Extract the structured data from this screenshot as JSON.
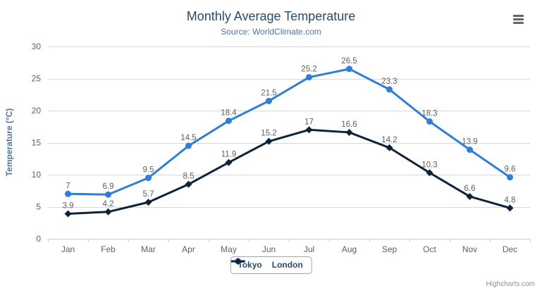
{
  "header": {
    "title": "Monthly Average Temperature",
    "subtitle": "Source: WorldClimate.com",
    "menu_icon": "hamburger-menu"
  },
  "credits": {
    "label": "Highcharts.com"
  },
  "colors": {
    "title": "#274b6d",
    "subtitle": "#4d759e",
    "axis_title": "#4d759e",
    "tick_label": "#606060",
    "data_label": "#606060",
    "gridline": "#d8d8d8",
    "axis_line": "#c0d0e0",
    "legend_text": "#274b6d",
    "credits_text": "#909090",
    "menu_icon_color": "#666666",
    "tokyo": "#2f7ed8",
    "london": "#0d233a"
  },
  "chart_data": {
    "type": "line",
    "title": "Monthly Average Temperature",
    "subtitle": "Source: WorldClimate.com",
    "categories": [
      "Jan",
      "Feb",
      "Mar",
      "Apr",
      "May",
      "Jun",
      "Jul",
      "Aug",
      "Sep",
      "Oct",
      "Nov",
      "Dec"
    ],
    "series": [
      {
        "name": "Tokyo",
        "color": "#2f7ed8",
        "marker": "circle",
        "values": [
          7,
          6.9,
          9.5,
          14.5,
          18.4,
          21.5,
          25.2,
          26.5,
          23.3,
          18.3,
          13.9,
          9.6
        ]
      },
      {
        "name": "London",
        "color": "#0d233a",
        "marker": "diamond",
        "values": [
          3.9,
          4.2,
          5.7,
          8.5,
          11.9,
          15.2,
          17,
          16.6,
          14.2,
          10.3,
          6.6,
          4.8
        ]
      }
    ],
    "xlabel": "",
    "ylabel": "Temperature (°C)",
    "ylim": [
      0,
      30
    ],
    "yticks": [
      0,
      5,
      10,
      15,
      20,
      25,
      30
    ],
    "grid": true,
    "data_labels": true,
    "legend_position": "bottom-center"
  }
}
